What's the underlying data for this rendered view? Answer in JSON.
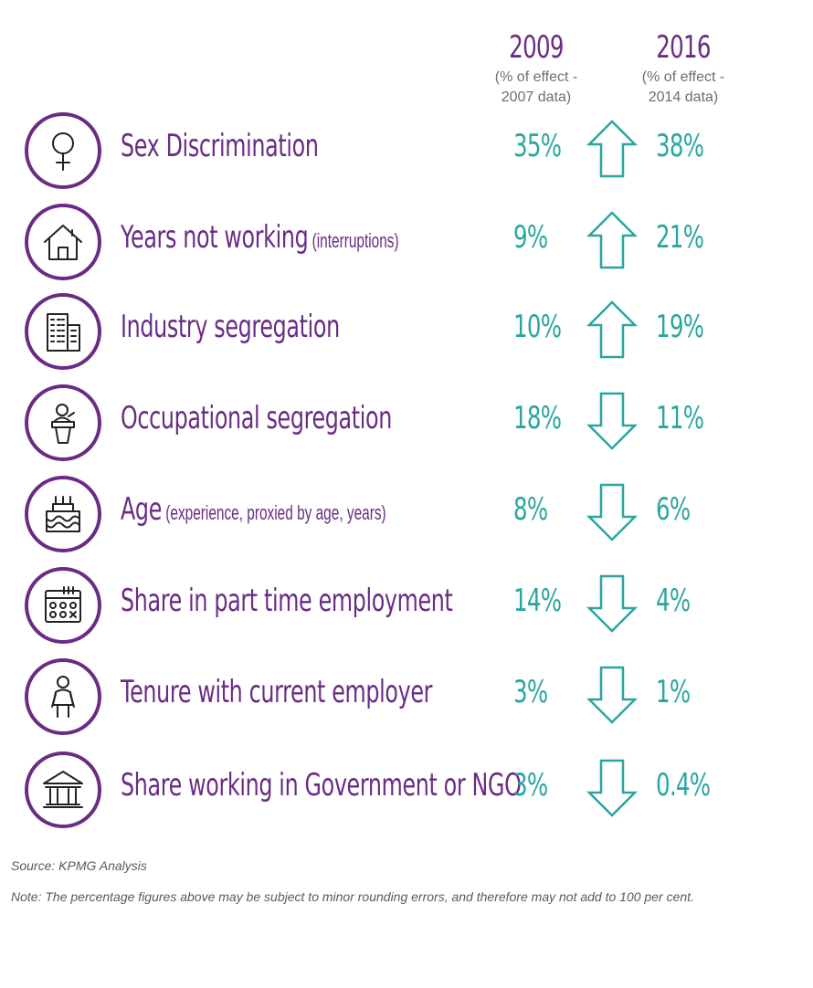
{
  "columns": {
    "left": {
      "year": "2009",
      "sub1": "(% of effect -",
      "sub2": "2007 data)"
    },
    "right": {
      "year": "2016",
      "sub1": "(% of effect -",
      "sub2": "2014 data)"
    }
  },
  "rows": [
    {
      "label": "Sex Discrimination",
      "note": "",
      "v2009": "35%",
      "v2016": "38%",
      "icon": "female-symbol-icon"
    },
    {
      "label": "Years not working",
      "note": "(interruptions)",
      "v2009": "9%",
      "v2016": "21%",
      "icon": "house-icon"
    },
    {
      "label": "Industry segregation",
      "note": "",
      "v2009": "10%",
      "v2016": "19%",
      "icon": "buildings-icon"
    },
    {
      "label": "Occupational segregation",
      "note": "",
      "v2009": "18%",
      "v2016": "11%",
      "icon": "woman-at-podium-icon"
    },
    {
      "label": "Age",
      "note": "(experience, proxied by age, years)",
      "v2009": "8%",
      "v2016": "6%",
      "icon": "birthday-cake-icon"
    },
    {
      "label": "Share in part time employment",
      "note": "",
      "v2009": "14%",
      "v2016": "4%",
      "icon": "calendar-icon"
    },
    {
      "label": "Tenure with current employer",
      "note": "",
      "v2009": "3%",
      "v2016": "1%",
      "icon": "woman-icon"
    },
    {
      "label": "Share working in Government or NGO",
      "note": "",
      "v2009": "3%",
      "v2016": "0.4%",
      "icon": "government-building-icon"
    }
  ],
  "chart_data": {
    "type": "table",
    "categories": [
      "Sex Discrimination",
      "Years not working",
      "Industry segregation",
      "Occupational segregation",
      "Age",
      "Share in part time employment",
      "Tenure with current employer",
      "Share working in Government or NGO"
    ],
    "series": [
      {
        "name": "2009",
        "values": [
          35,
          9,
          10,
          18,
          8,
          14,
          3,
          3
        ]
      },
      {
        "name": "2016",
        "values": [
          38,
          21,
          19,
          11,
          6,
          4,
          1,
          0.4
        ]
      }
    ],
    "direction": [
      "up",
      "up",
      "up",
      "down",
      "down",
      "down",
      "down",
      "down"
    ],
    "unit": "%"
  },
  "colors": {
    "purple": "#6a2c83",
    "teal": "#2aa6a1"
  },
  "footer": {
    "source": "Source:  KPMG Analysis",
    "note": "Note: The percentage figures above may be subject to minor rounding errors, and therefore may not add to 100 per cent."
  }
}
